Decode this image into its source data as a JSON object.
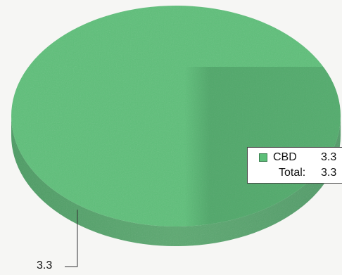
{
  "chart_data": {
    "type": "pie",
    "categories": [
      "CBD"
    ],
    "values": [
      3.3
    ],
    "colors": [
      "#5cbf78"
    ],
    "total_label": "Total:",
    "total_value": "3.3",
    "data_labels": [
      "3.3"
    ],
    "legend_position": "right",
    "style": "3d"
  }
}
